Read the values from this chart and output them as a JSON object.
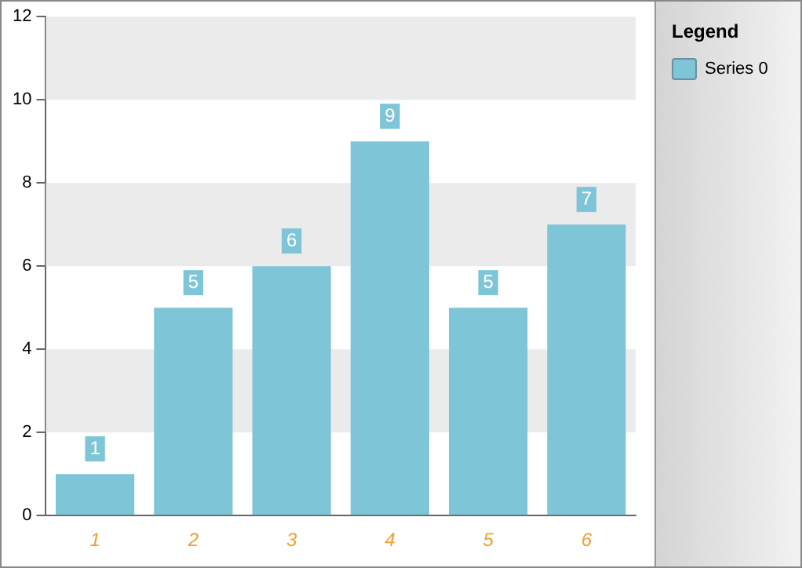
{
  "chart_data": {
    "type": "bar",
    "legend_title": "Legend",
    "categories": [
      "1",
      "2",
      "3",
      "4",
      "5",
      "6"
    ],
    "series": [
      {
        "name": "Series 0",
        "color": "#7ec5d7",
        "values": [
          1,
          5,
          6,
          9,
          5,
          7
        ]
      }
    ],
    "ylim": [
      0,
      12
    ],
    "yticks": [
      0,
      2,
      4,
      6,
      8,
      10,
      12
    ],
    "legend": "right",
    "data_labels": true,
    "bands": [
      {
        "axis": "y",
        "from": 2,
        "to": 4,
        "color": "#ebebeb"
      },
      {
        "axis": "y",
        "from": 6,
        "to": 8,
        "color": "#ebebeb"
      },
      {
        "axis": "y",
        "from": 10,
        "to": 12,
        "color": "#ebebeb"
      }
    ]
  }
}
